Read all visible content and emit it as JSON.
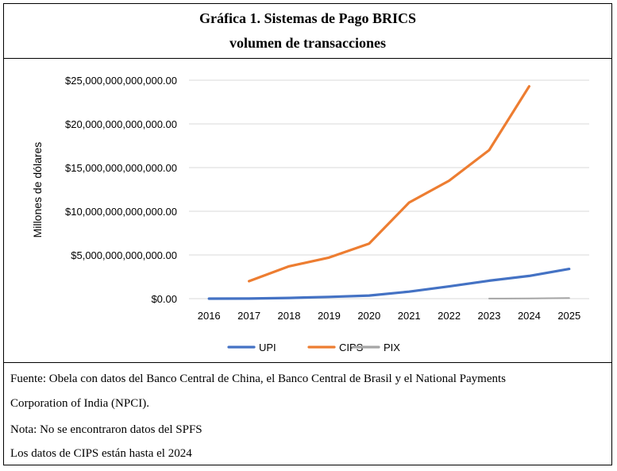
{
  "title_line1": "Gráfica 1. Sistemas de Pago BRICS",
  "title_line2": "volumen de transacciones",
  "chart_data": {
    "type": "line",
    "ylabel": "Millones de dólares",
    "xlabel": "",
    "ylim": [
      0,
      25000000000000
    ],
    "y_ticks": [
      0,
      5000000000000,
      10000000000000,
      15000000000000,
      20000000000000,
      25000000000000
    ],
    "y_tick_labels": [
      "$0.00",
      "$5,000,000,000,000.00",
      "$10,000,000,000,000.00",
      "$15,000,000,000,000.00",
      "$20,000,000,000,000.00",
      "$25,000,000,000,000.00"
    ],
    "categories": [
      "2016",
      "2017",
      "2018",
      "2019",
      "2020",
      "2021",
      "2022",
      "2023",
      "2024",
      "2025"
    ],
    "grid": true,
    "legend_position": "bottom",
    "series": [
      {
        "name": "UPI",
        "color": "#4472C4",
        "values": [
          0,
          10000000000,
          80000000000,
          200000000000,
          350000000000,
          800000000000,
          1400000000000,
          2050000000000,
          2600000000000,
          3400000000000
        ]
      },
      {
        "name": "CIPS",
        "color": "#ED7D31",
        "values": [
          null,
          2000000000000,
          3700000000000,
          4700000000000,
          6300000000000,
          11000000000000,
          13500000000000,
          17000000000000,
          24300000000000,
          null
        ]
      },
      {
        "name": "PIX",
        "color": "#A5A5A5",
        "values": [
          null,
          null,
          null,
          null,
          null,
          null,
          null,
          10000000000,
          30000000000,
          60000000000
        ]
      }
    ]
  },
  "notes": {
    "line1": "Fuente: Obela con datos del Banco Central de China, el Banco Central de Brasil y el National Payments",
    "line2": "Corporation of India (NPCI).",
    "line3": "Nota: No se encontraron datos del SPFS",
    "line4": "Los datos de CIPS están hasta el 2024"
  }
}
